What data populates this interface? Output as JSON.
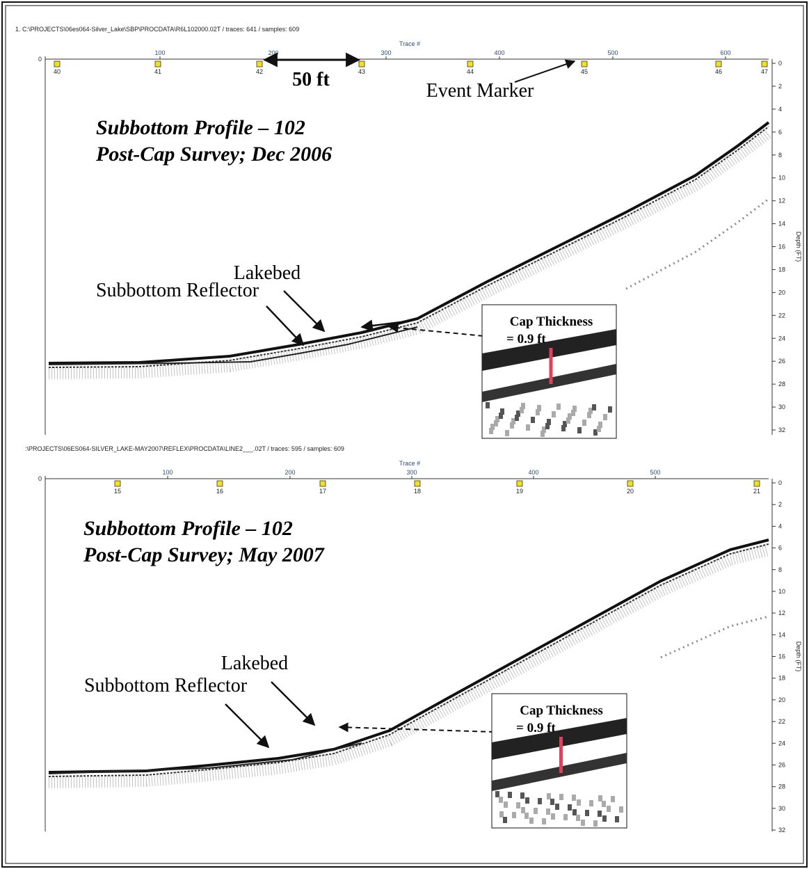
{
  "panels": [
    {
      "file_path": "1. C:\\PROJECTS\\06es064-Silver_Lake\\SBP\\PROCDATA\\R6L102000.02T / traces: 641 / samples: 609",
      "x_axis_label": "Trace #",
      "left_tick": "0",
      "x_ticks": [
        "100",
        "200",
        "300",
        "400",
        "500",
        "600"
      ],
      "markers": [
        "40",
        "41",
        "42",
        "43",
        "44",
        "45",
        "46",
        "47"
      ],
      "y_axis_label": "Depth (FT)",
      "y_ticks": [
        "0",
        "2",
        "4",
        "6",
        "8",
        "10",
        "12",
        "14",
        "16",
        "18",
        "20",
        "22",
        "24",
        "26",
        "28",
        "30",
        "32"
      ],
      "title": [
        "Subbottom Profile – 102",
        "Post-Cap Survey; Dec 2006"
      ],
      "scale_label": "50 ft",
      "event_marker": "Event Marker",
      "lakebed": "Lakebed",
      "reflector": "Subbottom Reflector",
      "inset": [
        "Cap Thickness",
        "= 0.9 ft"
      ]
    },
    {
      "file_path": ":\\PROJECTS\\06ES064-SILVER_LAKE-MAY2007\\REFLEX\\PROCDATA\\LINE2___.02T / traces: 595 / samples: 609",
      "x_axis_label": "Trace #",
      "left_tick": "0",
      "x_ticks": [
        "100",
        "200",
        "300",
        "400",
        "500"
      ],
      "markers": [
        "15",
        "16",
        "17",
        "18",
        "19",
        "20",
        "21"
      ],
      "y_axis_label": "Depth (FT)",
      "y_ticks": [
        "0",
        "2",
        "4",
        "6",
        "8",
        "10",
        "12",
        "14",
        "16",
        "18",
        "20",
        "22",
        "24",
        "26",
        "28",
        "30",
        "32"
      ],
      "title": [
        "Subbottom Profile – 102",
        "Post-Cap Survey; May 2007"
      ],
      "lakebed": "Lakebed",
      "reflector": "Subbottom Reflector",
      "inset": [
        "Cap Thickness",
        "= 0.9 ft"
      ]
    }
  ]
}
